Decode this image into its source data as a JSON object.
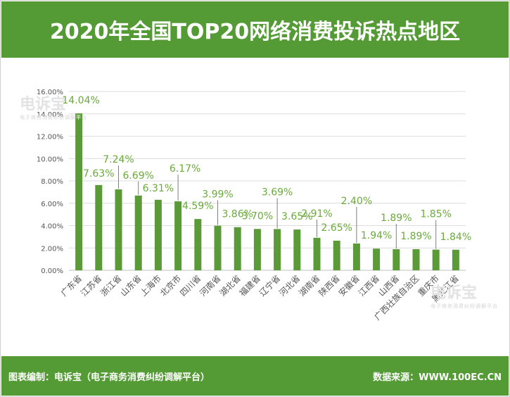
{
  "header": {
    "title": "2020年全国TOP20网络消费投诉热点地区"
  },
  "footer": {
    "left_text": "图表编制：电诉宝（电子商务消费纠纷调解平台）",
    "right_text": "数据来源：WWW.100EC.CN"
  },
  "watermark": {
    "brand": "电诉宝",
    "tagline": "电子商务消费纠纷调解平台"
  },
  "colors": {
    "brand_green": "#549b35",
    "bar": "#5b9b37",
    "label": "#6aaa3a"
  },
  "chart_data": {
    "type": "bar",
    "title": "2020年全国TOP20网络消费投诉热点地区",
    "xlabel": "",
    "ylabel": "",
    "ylim": [
      0,
      16
    ],
    "yticks": [
      "0.00%",
      "2.00%",
      "4.00%",
      "6.00%",
      "8.00%",
      "10.00%",
      "12.00%",
      "14.00%",
      "16.00%"
    ],
    "grid": true,
    "categories": [
      "广东省",
      "江苏省",
      "浙江省",
      "山东省",
      "上海市",
      "北京市",
      "四川省",
      "河南省",
      "湖北省",
      "福建省",
      "辽宁省",
      "河北省",
      "湖南省",
      "陕西省",
      "安徽省",
      "江西省",
      "山西省",
      "广西壮族自治区",
      "重庆市",
      "黑龙江省"
    ],
    "values": [
      14.04,
      7.63,
      7.24,
      6.69,
      6.31,
      6.17,
      4.59,
      3.99,
      3.86,
      3.7,
      3.69,
      3.65,
      2.91,
      2.65,
      2.4,
      1.94,
      1.89,
      1.89,
      1.85,
      1.84
    ],
    "labels": [
      "14.04%",
      "7.63%",
      "7.24%",
      "6.69%",
      "6.31%",
      "6.17%",
      "4.59%",
      "3.99%",
      "3.86%",
      "3.70%",
      "3.69%",
      "3.65%",
      "2.91%",
      "2.65%",
      "2.40%",
      "1.94%",
      "1.89%",
      "1.89%",
      "1.85%",
      "1.84%"
    ]
  }
}
